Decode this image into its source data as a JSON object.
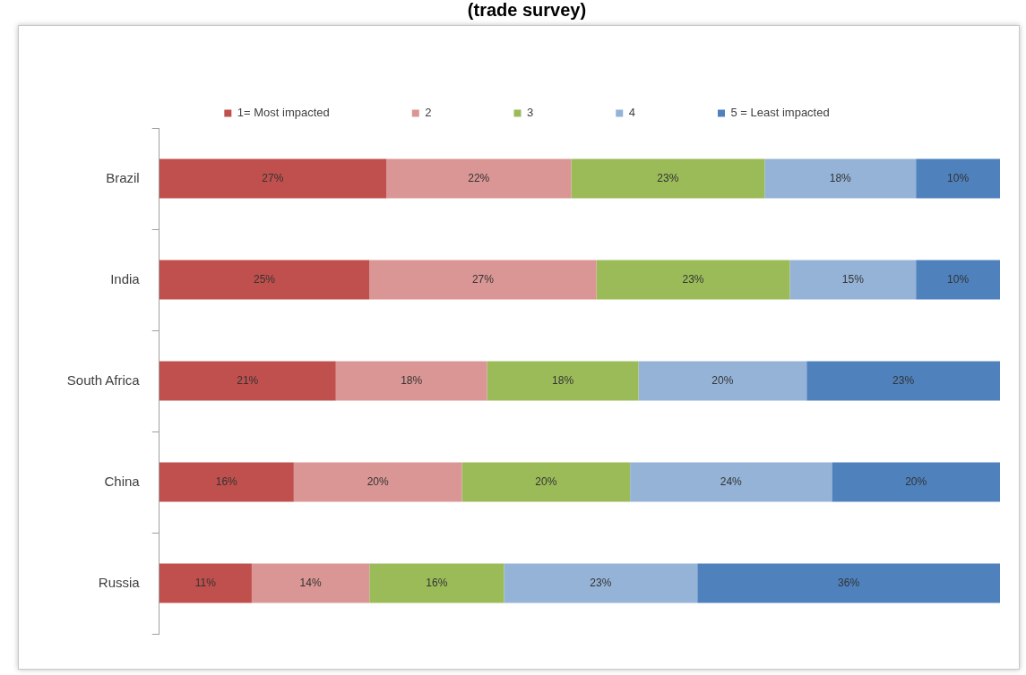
{
  "chart_data": {
    "type": "bar",
    "title": "(trade survey)",
    "orientation": "horizontal",
    "stacked": true,
    "categories": [
      "Brazil",
      "India",
      "South Africa",
      "China",
      "Russia"
    ],
    "series": [
      {
        "name": "1= Most impacted",
        "color": "#c0504d",
        "values": [
          27,
          25,
          21,
          16,
          11
        ],
        "value_labels": [
          "27%",
          "25%",
          "21%",
          "16%",
          "11%"
        ]
      },
      {
        "name": "2",
        "color": "#d99694",
        "values": [
          22,
          27,
          18,
          20,
          14
        ],
        "value_labels": [
          "22%",
          "27%",
          "18%",
          "20%",
          "14%"
        ]
      },
      {
        "name": "3",
        "color": "#9bbb59",
        "values": [
          23,
          23,
          18,
          20,
          16
        ],
        "value_labels": [
          "23%",
          "23%",
          "18%",
          "20%",
          "16%"
        ]
      },
      {
        "name": "4",
        "color": "#95b3d7",
        "values": [
          18,
          15,
          20,
          24,
          23
        ],
        "value_labels": [
          "18%",
          "15%",
          "20%",
          "24%",
          "23%"
        ]
      },
      {
        "name": "5 = Least impacted",
        "color": "#4f81bd",
        "values": [
          10,
          10,
          23,
          20,
          36
        ],
        "value_labels": [
          "10%",
          "10%",
          "23%",
          "20%",
          "36%"
        ]
      }
    ],
    "xlim": [
      0,
      100
    ],
    "legend": "top",
    "tick_labels": "y"
  }
}
